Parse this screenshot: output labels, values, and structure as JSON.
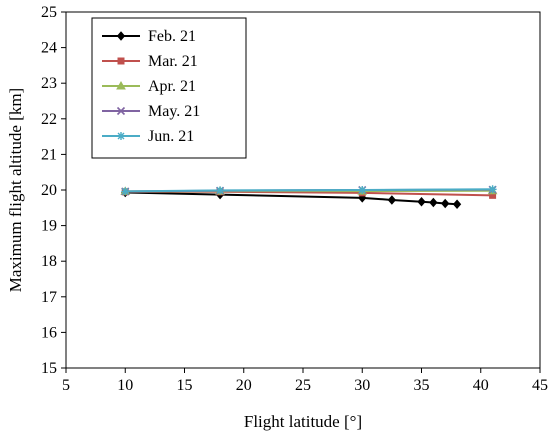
{
  "chart_data": {
    "type": "line",
    "title": "",
    "xlabel": "Flight latitude [°]",
    "ylabel": "Maximum flight altitude [km]",
    "xlim": [
      5,
      45
    ],
    "ylim": [
      15,
      25
    ],
    "xticks": [
      5,
      10,
      15,
      20,
      25,
      30,
      35,
      40,
      45
    ],
    "yticks": [
      15,
      16,
      17,
      18,
      19,
      20,
      21,
      22,
      23,
      24,
      25
    ],
    "grid": false,
    "legend_position": "top-left",
    "series": [
      {
        "name": "Feb. 21",
        "color": "#000000",
        "marker": "diamond",
        "x": [
          10,
          18,
          30,
          32.5,
          35,
          36,
          37,
          38
        ],
        "y": [
          19.93,
          19.87,
          19.78,
          19.72,
          19.67,
          19.65,
          19.62,
          19.6
        ]
      },
      {
        "name": "Mar. 21",
        "color": "#c0504d",
        "marker": "square",
        "x": [
          10,
          18,
          30,
          41
        ],
        "y": [
          19.95,
          19.95,
          19.92,
          19.85
        ]
      },
      {
        "name": "Apr. 21",
        "color": "#9bbb59",
        "marker": "triangle",
        "x": [
          10,
          18,
          30,
          41
        ],
        "y": [
          19.96,
          19.97,
          19.97,
          19.98
        ]
      },
      {
        "name": "May. 21",
        "color": "#8064a2",
        "marker": "x",
        "x": [
          10,
          18,
          30,
          41
        ],
        "y": [
          19.96,
          19.98,
          20.0,
          20.01
        ]
      },
      {
        "name": "Jun. 21",
        "color": "#4bacc6",
        "marker": "star",
        "x": [
          10,
          18,
          30,
          41
        ],
        "y": [
          19.96,
          19.99,
          20.0,
          20.02
        ]
      }
    ]
  }
}
